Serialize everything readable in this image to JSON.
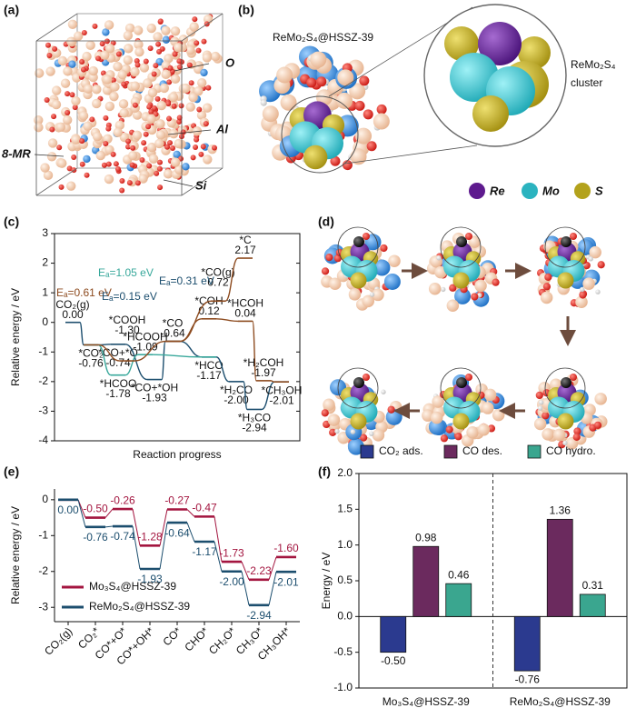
{
  "panel_labels": [
    "(a)",
    "(b)",
    "(c)",
    "(d)",
    "(e)",
    "(f)"
  ],
  "panel_a": {
    "labels": [
      "O",
      "Al",
      "8-MR",
      "Si"
    ]
  },
  "panel_b": {
    "title": "ReMo₂S₄@HSSZ-39",
    "cluster_label": [
      "ReMo₂S₄",
      "cluster"
    ],
    "legend": [
      {
        "name": "Re",
        "color": "#5e1a8e"
      },
      {
        "name": "Mo",
        "color": "#2bb3bf"
      },
      {
        "name": "S",
        "color": "#b3a21c"
      }
    ]
  },
  "chart_data": [
    {
      "type": "energy-profile",
      "ylabel": "Relative energy / eV",
      "xlabel": "Reaction progress",
      "ylim": [
        -4,
        3
      ],
      "yticks": [
        -4,
        -3,
        -2,
        -1,
        0,
        1,
        2,
        3
      ],
      "series": [
        {
          "color": "#1c4e6e",
          "x": [
            2,
            4,
            7,
            11,
            13,
            17,
            20,
            22,
            25
          ],
          "values": [
            0,
            -0.76,
            -0.74,
            -1.93,
            -0.64,
            -1.17,
            -2.0,
            -2.94,
            -2.01
          ],
          "labels": [
            "CO₂(g)",
            "*CO₂",
            "*CO+*O",
            "*CO+*OH",
            "*CO",
            "*HCO",
            "*H₂CO",
            "*H₃CO",
            "*CH₃OH"
          ],
          "value_labels": [
            "0.00",
            "-0.76",
            "-0.74",
            "-1.93",
            "-0.64",
            "-1.17",
            "-2.00",
            "-2.94",
            "-2.01"
          ]
        },
        {
          "color": "#38a89b",
          "x": [
            4,
            7,
            10,
            17
          ],
          "values": [
            -0.76,
            -1.78,
            -1.09,
            -1.17
          ],
          "labels": [
            null,
            "*HCOO",
            "*HCOOH",
            null
          ],
          "value_labels": [
            null,
            "-1.78",
            "-1.09",
            null
          ]
        },
        {
          "color": "#8d4b1f",
          "x": [
            4,
            8,
            13,
            17,
            21,
            23,
            25
          ],
          "values": [
            -0.76,
            -1.3,
            -0.64,
            0.12,
            0.04,
            -1.97,
            -2.01
          ],
          "labels": [
            null,
            "*COOH",
            null,
            "*COH",
            "*HCOH",
            "*H₂COH",
            null
          ],
          "value_labels": [
            null,
            "-1.30",
            null,
            "0.12",
            "0.04",
            "-1.97",
            null
          ]
        },
        {
          "color": "#8d4b1f",
          "x": [
            13,
            18,
            21
          ],
          "values": [
            -0.64,
            0.72,
            2.17
          ],
          "labels": [
            null,
            "*CO(g)",
            "*C"
          ],
          "value_labels": [
            null,
            "0.72",
            "2.17"
          ]
        }
      ],
      "annotations": [
        {
          "text": "Eₐ=0.61 eV",
          "color": "#8d4b1f"
        },
        {
          "text": "Eₐ=1.05 eV",
          "color": "#38a89b"
        },
        {
          "text": "Eₐ=0.15 eV",
          "color": "#1c4e6e"
        },
        {
          "text": "Eₐ=0.31 eV",
          "color": "#1c4e6e"
        }
      ]
    },
    {
      "type": "energy-profile",
      "ylabel": "Relative energy / eV",
      "ylim": [
        -3.4,
        0.3
      ],
      "yticks": [
        -3,
        -2,
        -1,
        0
      ],
      "legend": "lower left",
      "categories": [
        "CO₂(g)",
        "CO₂*",
        "CO*+O*",
        "CO*+OH*",
        "CO*",
        "CHO*",
        "CH₂O*",
        "CH₃O*",
        "CH₃OH*"
      ],
      "series": [
        {
          "name": "Mo₃S₄@HSSZ-39",
          "color": "#a3153f",
          "values": [
            0,
            -0.5,
            -0.26,
            -1.28,
            -0.27,
            -0.47,
            -1.73,
            -2.23,
            -1.6
          ],
          "value_labels": [
            null,
            "-0.50",
            "-0.26",
            "-1.28",
            "-0.27",
            "-0.47",
            "-1.73",
            "-2.23",
            "-1.60"
          ]
        },
        {
          "name": "ReMo₂S₄@HSSZ-39",
          "color": "#1c4e6e",
          "values": [
            0,
            -0.76,
            -0.74,
            -1.93,
            -0.64,
            -1.17,
            -2.0,
            -2.94,
            -2.01
          ],
          "value_labels": [
            "0.00",
            "-0.76",
            "-0.74",
            "-1.93",
            "-0.64",
            "-1.17",
            "-2.00",
            "-2.94",
            "-2.01"
          ]
        }
      ]
    },
    {
      "type": "bar",
      "ylabel": "Energy / eV",
      "legend": "top",
      "categories": [
        "Mo₃S₄@HSSZ-39",
        "ReMo₂S₄@HSSZ-39"
      ],
      "ylim": [
        -1,
        2
      ],
      "yticks": [
        {
          "value": -1,
          "label": "-1.0"
        },
        {
          "value": -0.5,
          "label": "-0.5"
        },
        {
          "value": 0,
          "label": "0.0"
        },
        {
          "value": 0.5,
          "label": "0.5"
        },
        {
          "value": 1,
          "label": "1.0"
        },
        {
          "value": 1.5,
          "label": "1.5"
        },
        {
          "value": 2,
          "label": "2.0"
        }
      ],
      "series": [
        {
          "name": "CO₂ ads.",
          "color": "#2b3a8f",
          "values": [
            -0.5,
            -0.76
          ],
          "value_labels": [
            "-0.50",
            "-0.76"
          ]
        },
        {
          "name": "CO des.",
          "color": "#6b2a5e",
          "values": [
            0.98,
            1.36
          ],
          "value_labels": [
            "0.98",
            "1.36"
          ]
        },
        {
          "name": "CO hydro.",
          "color": "#3aa68f",
          "values": [
            0.46,
            0.31
          ],
          "value_labels": [
            "0.46",
            "0.31"
          ]
        }
      ]
    }
  ]
}
